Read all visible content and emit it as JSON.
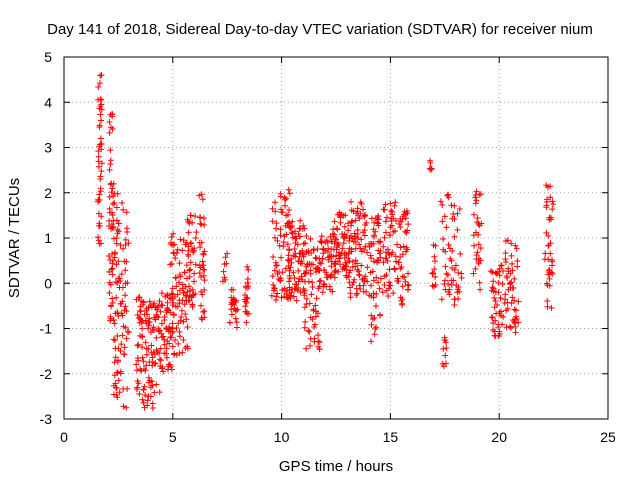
{
  "chart_data": {
    "type": "scatter",
    "title": "Day 141 of 2018, Sidereal Day-to-day VTEC variation (SDTVAR) for receiver nium",
    "xlabel": "GPS time / hours",
    "ylabel": "SDTVAR / TECUs",
    "xlim": [
      0,
      25
    ],
    "ylim": [
      -3,
      5
    ],
    "xticks": [
      0,
      5,
      10,
      15,
      20,
      25
    ],
    "yticks": [
      -3,
      -2,
      -1,
      0,
      1,
      2,
      3,
      4,
      5
    ],
    "grid": true,
    "legend": "none",
    "marker": "plus",
    "color": "#ff0000",
    "clusters": [
      {
        "x0": 1.55,
        "x1": 1.75,
        "ylo": 0.8,
        "yhi": 4.6,
        "n": 45
      },
      {
        "x0": 2.05,
        "x1": 2.25,
        "ylo": -0.9,
        "yhi": 3.8,
        "n": 40
      },
      {
        "x0": 2.2,
        "x1": 2.5,
        "ylo": -2.6,
        "yhi": 2.3,
        "n": 45
      },
      {
        "x0": 2.4,
        "x1": 3.0,
        "ylo": -3.0,
        "yhi": 1.8,
        "n": 60
      },
      {
        "x0": 3.3,
        "x1": 3.7,
        "ylo": -2.5,
        "yhi": -0.3,
        "n": 40
      },
      {
        "x0": 3.6,
        "x1": 4.4,
        "ylo": -2.8,
        "yhi": -0.4,
        "n": 70
      },
      {
        "x0": 4.3,
        "x1": 5.1,
        "ylo": -2.0,
        "yhi": -0.2,
        "n": 60
      },
      {
        "x0": 4.8,
        "x1": 5.8,
        "ylo": -1.6,
        "yhi": 1.1,
        "n": 80
      },
      {
        "x0": 5.6,
        "x1": 6.1,
        "ylo": -0.7,
        "yhi": 1.5,
        "n": 40
      },
      {
        "x0": 6.2,
        "x1": 6.5,
        "ylo": -0.8,
        "yhi": 2.0,
        "n": 35
      },
      {
        "x0": 7.3,
        "x1": 7.5,
        "ylo": -0.1,
        "yhi": 1.3,
        "n": 8
      },
      {
        "x0": 7.6,
        "x1": 8.0,
        "ylo": -1.0,
        "yhi": -0.1,
        "n": 25
      },
      {
        "x0": 8.3,
        "x1": 8.5,
        "ylo": -0.9,
        "yhi": 0.4,
        "n": 20
      },
      {
        "x0": 9.5,
        "x1": 10.5,
        "ylo": -0.4,
        "yhi": 2.1,
        "n": 70
      },
      {
        "x0": 10.2,
        "x1": 11.2,
        "ylo": -0.4,
        "yhi": 1.4,
        "n": 80
      },
      {
        "x0": 11.0,
        "x1": 11.8,
        "ylo": -1.5,
        "yhi": 1.0,
        "n": 60
      },
      {
        "x0": 11.6,
        "x1": 12.5,
        "ylo": -0.2,
        "yhi": 1.1,
        "n": 60
      },
      {
        "x0": 12.3,
        "x1": 13.2,
        "ylo": 0.1,
        "yhi": 1.6,
        "n": 70
      },
      {
        "x0": 13.0,
        "x1": 14.0,
        "ylo": -0.4,
        "yhi": 1.8,
        "n": 80
      },
      {
        "x0": 14.0,
        "x1": 14.6,
        "ylo": -1.3,
        "yhi": 1.5,
        "n": 55
      },
      {
        "x0": 14.6,
        "x1": 15.3,
        "ylo": -0.3,
        "yhi": 1.8,
        "n": 50
      },
      {
        "x0": 15.3,
        "x1": 15.9,
        "ylo": -0.7,
        "yhi": 1.6,
        "n": 45
      },
      {
        "x0": 16.8,
        "x1": 16.9,
        "ylo": 2.5,
        "yhi": 2.8,
        "n": 6
      },
      {
        "x0": 16.9,
        "x1": 17.1,
        "ylo": -0.1,
        "yhi": 1.1,
        "n": 12
      },
      {
        "x0": 17.4,
        "x1": 17.6,
        "ylo": -1.9,
        "yhi": -1.2,
        "n": 10
      },
      {
        "x0": 17.3,
        "x1": 18.3,
        "ylo": -0.5,
        "yhi": 2.0,
        "n": 55
      },
      {
        "x0": 18.8,
        "x1": 19.2,
        "ylo": -0.2,
        "yhi": 2.1,
        "n": 30
      },
      {
        "x0": 19.6,
        "x1": 20.2,
        "ylo": -1.2,
        "yhi": 0.4,
        "n": 45
      },
      {
        "x0": 20.2,
        "x1": 20.9,
        "ylo": -1.1,
        "yhi": 1.1,
        "n": 50
      },
      {
        "x0": 22.1,
        "x1": 22.5,
        "ylo": -0.6,
        "yhi": 2.2,
        "n": 40
      }
    ]
  }
}
